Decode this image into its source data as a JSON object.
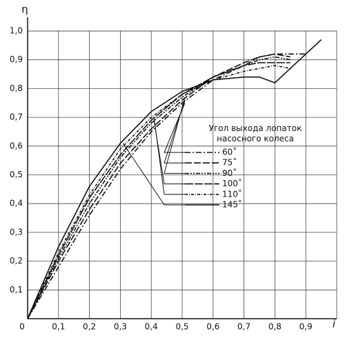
{
  "chart_data": {
    "type": "line",
    "y_label": "η",
    "x_label": "i",
    "legend_title": "Угол выхода лопаток насосного колеса",
    "x": [
      0,
      0.1,
      0.2,
      0.3,
      0.4,
      0.5,
      0.6,
      0.7,
      0.75,
      0.8,
      0.85,
      0.9,
      0.95
    ],
    "series": [
      {
        "name": "60˚",
        "color": "#111111",
        "values": [
          0,
          0.18,
          0.36,
          0.52,
          0.65,
          0.75,
          0.83,
          0.88,
          0.91,
          0.92,
          0.92,
          0.92,
          null
        ]
      },
      {
        "name": "75˚",
        "color": "#111111",
        "values": [
          0,
          0.2,
          0.38,
          0.54,
          0.66,
          0.76,
          0.84,
          0.89,
          0.91,
          0.92,
          0.91,
          null,
          null
        ]
      },
      {
        "name": "90˚",
        "color": "#111111",
        "values": [
          0,
          0.21,
          0.4,
          0.56,
          0.68,
          0.77,
          0.84,
          0.88,
          0.9,
          0.91,
          0.9,
          null,
          null
        ]
      },
      {
        "name": "100˚",
        "color": "#111111",
        "values": [
          0,
          0.22,
          0.42,
          0.57,
          0.69,
          0.78,
          0.84,
          0.88,
          0.89,
          0.89,
          0.89,
          null,
          null
        ]
      },
      {
        "name": "110˚",
        "color": "#111111",
        "values": [
          0,
          0.23,
          0.43,
          0.59,
          0.7,
          0.78,
          0.83,
          0.86,
          0.87,
          0.88,
          0.87,
          null,
          null
        ]
      },
      {
        "name": "145˚",
        "color": "#111111",
        "values": [
          0,
          0.25,
          0.46,
          0.61,
          0.72,
          0.79,
          0.83,
          0.84,
          0.84,
          0.82,
          0.87,
          0.92,
          0.97
        ]
      }
    ],
    "xlim": [
      0,
      1
    ],
    "ylim": [
      0,
      1
    ],
    "xticks": [
      0,
      {
        "value": 0.1,
        "label": "0,1"
      },
      {
        "value": 0.2,
        "label": "0,2"
      },
      {
        "value": 0.3,
        "label": "0,3"
      },
      {
        "value": 0.4,
        "label": "0,4"
      },
      {
        "value": 0.5,
        "label": "0,5"
      },
      {
        "value": 0.6,
        "label": "0,6"
      },
      {
        "value": 0.7,
        "label": "0,7"
      },
      {
        "value": 0.8,
        "label": "0,8"
      },
      {
        "value": 0.9,
        "label": "0,9"
      }
    ],
    "yticks": [
      {
        "value": 0.1,
        "label": "0,1"
      },
      {
        "value": 0.2,
        "label": "0,2"
      },
      {
        "value": 0.3,
        "label": "0,3"
      },
      {
        "value": 0.4,
        "label": "0,4"
      },
      {
        "value": 0.5,
        "label": "0,5"
      },
      {
        "value": 0.6,
        "label": "0,6"
      },
      {
        "value": 0.7,
        "label": "0,7"
      },
      {
        "value": 0.8,
        "label": "0,8"
      },
      {
        "value": 0.9,
        "label": "0,9"
      },
      {
        "value": 1,
        "label": "1,0"
      }
    ],
    "grid": true
  }
}
